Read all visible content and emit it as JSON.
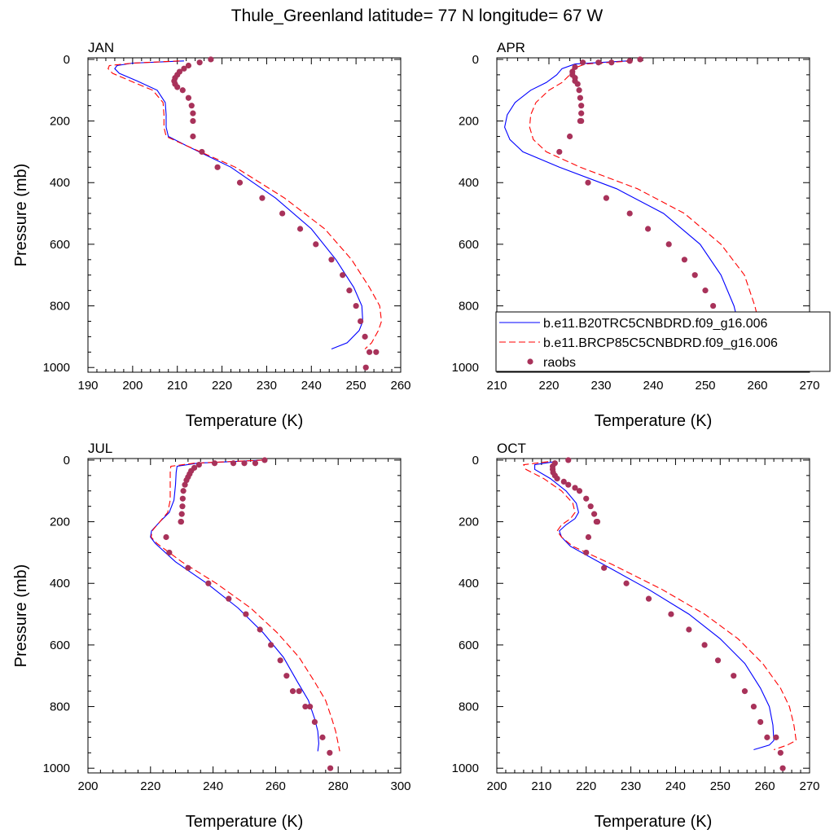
{
  "figure": {
    "title": "Thule_Greenland  latitude= 77 N longitude= 67 W"
  },
  "legend": {
    "placement": "right-middle",
    "entries": [
      {
        "label": "b.e11.B20TRC5CNBDRD.f09_g16.006",
        "style": "solid-line",
        "color": "#0000ff"
      },
      {
        "label": "b.e11.BRCP85C5CNBDRD.f09_g16.006",
        "style": "dashed-line",
        "color": "#ff0000"
      },
      {
        "label": "raobs",
        "style": "dots",
        "color": "#a8325a"
      }
    ]
  },
  "chart_data": [
    {
      "type": "line",
      "panel": "JAN",
      "xlabel": "Temperature (K)",
      "ylabel": "Pressure (mb)",
      "xlim": [
        190,
        260
      ],
      "ylim": [
        0,
        1000
      ],
      "y_inverted": true,
      "xticks": [
        "190",
        "200",
        "210",
        "220",
        "230",
        "240",
        "250",
        "260"
      ],
      "yticks": [
        "0",
        "200",
        "400",
        "600",
        "800",
        "1000"
      ],
      "series": [
        {
          "name": "b.e11.B20TRC5CNBDRD.f09_g16.006",
          "color": "#0000ff",
          "dash": false,
          "x": [
            211.5,
            200,
            196.5,
            196,
            197,
            201,
            205.5,
            207.3,
            207.5,
            207.5,
            208,
            212,
            222,
            232,
            240,
            245.5,
            249.5,
            251.3,
            251.5,
            250.7,
            248,
            244.5
          ],
          "y": [
            5,
            12,
            20,
            30,
            45,
            70,
            100,
            140,
            180,
            220,
            250,
            280,
            350,
            450,
            550,
            650,
            740,
            800,
            850,
            880,
            920,
            940
          ]
        },
        {
          "name": "b.e11.BRCP85C5CNBDRD.f09_g16.006",
          "color": "#ff0000",
          "dash": true,
          "x": [
            210.5,
            200,
            194.8,
            194.5,
            195.5,
            199.5,
            204.5,
            206.8,
            207,
            207,
            207.5,
            212,
            223,
            234,
            243,
            249,
            253,
            255.3,
            255.7,
            255,
            253.5,
            252
          ],
          "y": [
            5,
            12,
            20,
            30,
            45,
            70,
            100,
            140,
            180,
            220,
            250,
            280,
            350,
            450,
            550,
            650,
            740,
            800,
            850,
            880,
            920,
            940
          ]
        },
        {
          "name": "raobs",
          "color": "#a8325a",
          "dots": true,
          "x": [
            217.5,
            215,
            212.5,
            211.5,
            210.5,
            210,
            209.5,
            209.3,
            209.5,
            210,
            211.2,
            212.5,
            213.2,
            213.5,
            213.5,
            213.5,
            215.5,
            219,
            224,
            229,
            233.5,
            237.5,
            241,
            244.5,
            247,
            248.5,
            250,
            251,
            252,
            253,
            254.5,
            252.2
          ],
          "y": [
            0,
            10,
            20,
            30,
            40,
            50,
            60,
            70,
            80,
            90,
            100,
            125,
            150,
            175,
            200,
            250,
            300,
            350,
            400,
            450,
            500,
            550,
            600,
            650,
            700,
            750,
            800,
            850,
            900,
            950,
            950,
            1000
          ]
        }
      ]
    },
    {
      "type": "line",
      "panel": "APR",
      "xlabel": "Temperature (K)",
      "ylabel": "",
      "xlim": [
        210,
        270
      ],
      "ylim": [
        0,
        1000
      ],
      "y_inverted": true,
      "xticks": [
        "210",
        "220",
        "230",
        "240",
        "250",
        "260",
        "270"
      ],
      "yticks": [
        "0",
        "200",
        "400",
        "600",
        "800",
        "1000"
      ],
      "series": [
        {
          "name": "b.e11.B20TRC5CNBDRD.f09_g16.006",
          "color": "#0000ff",
          "dash": false,
          "x": [
            235,
            225,
            222.5,
            221.5,
            219.5,
            216.5,
            213.5,
            212,
            211.5,
            212.5,
            215,
            222,
            233,
            242,
            249,
            253,
            255.5,
            256.5,
            257,
            256.8,
            254
          ],
          "y": [
            5,
            15,
            30,
            50,
            75,
            100,
            140,
            180,
            220,
            260,
            300,
            350,
            420,
            500,
            600,
            700,
            800,
            870,
            900,
            930,
            945
          ]
        },
        {
          "name": "b.e11.BRCP85C5CNBDRD.f09_g16.006",
          "color": "#ff0000",
          "dash": true,
          "x": [
            236,
            227,
            224.5,
            224,
            222.5,
            220,
            217.5,
            216.5,
            216.3,
            217,
            219.5,
            226,
            237,
            246,
            253,
            257.5,
            259.5,
            260.5,
            260.7,
            260,
            257
          ],
          "y": [
            5,
            15,
            30,
            50,
            75,
            100,
            140,
            180,
            220,
            260,
            300,
            350,
            420,
            500,
            600,
            700,
            800,
            870,
            900,
            930,
            945
          ]
        },
        {
          "name": "raobs",
          "color": "#a8325a",
          "dots": true,
          "x": [
            237.5,
            235.5,
            232,
            229.5,
            226.5,
            225,
            224.5,
            224.5,
            225,
            225,
            225.5,
            225.8,
            226,
            226.2,
            226.2,
            226.2,
            226,
            224,
            222,
            227.5,
            231,
            235.5,
            239,
            243,
            246,
            248,
            250,
            251.5,
            253,
            254.5,
            256,
            257
          ],
          "y": [
            0,
            5,
            10,
            10,
            10,
            25,
            40,
            50,
            60,
            70,
            80,
            100,
            125,
            150,
            175,
            200,
            200,
            250,
            300,
            400,
            450,
            500,
            550,
            600,
            650,
            700,
            750,
            800,
            850,
            900,
            950,
            1000
          ]
        }
      ]
    },
    {
      "type": "line",
      "panel": "JUL",
      "xlabel": "Temperature (K)",
      "ylabel": "Pressure (mb)",
      "xlim": [
        200,
        300
      ],
      "ylim": [
        0,
        1000
      ],
      "y_inverted": true,
      "xticks": [
        "200",
        "220",
        "240",
        "260",
        "280",
        "300"
      ],
      "yticks": [
        "0",
        "200",
        "400",
        "600",
        "800",
        "1000"
      ],
      "series": [
        {
          "name": "b.e11.B20TRC5CNBDRD.f09_g16.006",
          "color": "#0000ff",
          "dash": false,
          "x": [
            256,
            235,
            228.5,
            228.2,
            228,
            227.5,
            226,
            223,
            220.3,
            220,
            221.5,
            228,
            238,
            248,
            256,
            262.5,
            267,
            270.5,
            272.5,
            273.5,
            273.8,
            273.5
          ],
          "y": [
            0,
            10,
            20,
            40,
            80,
            130,
            170,
            200,
            230,
            250,
            270,
            330,
            400,
            480,
            560,
            640,
            720,
            780,
            840,
            880,
            920,
            945
          ]
        },
        {
          "name": "b.e11.BRCP85C5CNBDRD.f09_g16.006",
          "color": "#ff0000",
          "dash": true,
          "x": [
            256,
            234,
            226.5,
            226.3,
            226.3,
            226.3,
            225.5,
            223,
            220.5,
            220.2,
            222,
            230,
            241,
            252,
            260.5,
            267.5,
            272.5,
            276,
            278,
            279.2,
            280,
            280.5
          ],
          "y": [
            0,
            10,
            20,
            40,
            80,
            130,
            170,
            200,
            230,
            250,
            270,
            330,
            400,
            480,
            560,
            640,
            720,
            780,
            840,
            880,
            920,
            945
          ]
        },
        {
          "name": "raobs",
          "color": "#a8325a",
          "dots": true,
          "x": [
            256.5,
            253.5,
            250,
            246.5,
            240.5,
            235.5,
            234,
            233,
            232.5,
            232,
            231.5,
            231,
            230.5,
            230.3,
            230.2,
            230,
            229.8,
            229.7,
            225,
            226,
            232,
            238.5,
            245,
            250.5,
            255,
            258.5,
            261.5,
            263.5,
            265.5,
            267.5,
            269.5,
            271,
            272.5,
            275,
            277.3,
            277.5
          ],
          "y": [
            0,
            10,
            10,
            10,
            10,
            15,
            25,
            35,
            45,
            55,
            65,
            80,
            100,
            125,
            150,
            175,
            200,
            200,
            250,
            300,
            350,
            400,
            450,
            500,
            550,
            600,
            650,
            700,
            750,
            750,
            800,
            800,
            850,
            900,
            950,
            1000
          ]
        }
      ]
    },
    {
      "type": "line",
      "panel": "OCT",
      "xlabel": "Temperature (K)",
      "ylabel": "",
      "xlim": [
        200,
        270
      ],
      "ylim": [
        0,
        1000
      ],
      "y_inverted": true,
      "xticks": [
        "200",
        "210",
        "220",
        "230",
        "240",
        "250",
        "260",
        "270"
      ],
      "yticks": [
        "0",
        "200",
        "400",
        "600",
        "800",
        "1000"
      ],
      "series": [
        {
          "name": "b.e11.B20TRC5CNBDRD.f09_g16.006",
          "color": "#0000ff",
          "dash": false,
          "x": [
            213,
            208.5,
            208.5,
            212,
            215.5,
            217.8,
            218.3,
            217.5,
            215.5,
            214,
            214.5,
            216.5,
            224,
            234,
            243,
            250,
            255.5,
            259,
            261,
            261.8,
            262,
            261,
            257.5
          ],
          "y": [
            5,
            15,
            30,
            60,
            100,
            140,
            170,
            190,
            210,
            230,
            250,
            280,
            340,
            420,
            500,
            580,
            660,
            740,
            800,
            860,
            910,
            925,
            940
          ]
        },
        {
          "name": "b.e11.BRCP85C5CNBDRD.f09_g16.006",
          "color": "#ff0000",
          "dash": true,
          "x": [
            211.5,
            206,
            206.5,
            210.5,
            214.5,
            217,
            217.5,
            216.5,
            214.5,
            213.5,
            214.5,
            217,
            226,
            237,
            246.5,
            254,
            259.5,
            263.5,
            265.5,
            266.5,
            267,
            265,
            262
          ],
          "y": [
            5,
            15,
            30,
            60,
            100,
            140,
            170,
            190,
            210,
            230,
            250,
            280,
            340,
            420,
            500,
            580,
            660,
            740,
            800,
            860,
            910,
            925,
            940
          ]
        },
        {
          "name": "raobs",
          "color": "#a8325a",
          "dots": true,
          "x": [
            216,
            213,
            212.5,
            212.5,
            212.6,
            213,
            213.5,
            215,
            216,
            217.5,
            218.5,
            220,
            221,
            221.8,
            222.3,
            222.5,
            222.5,
            220.5,
            220,
            224,
            229,
            234,
            239,
            243,
            246.5,
            249.5,
            253,
            255.5,
            257.5,
            259,
            260.5,
            262.5,
            263.5,
            264
          ],
          "y": [
            0,
            10,
            20,
            30,
            40,
            50,
            60,
            70,
            80,
            90,
            100,
            125,
            150,
            175,
            200,
            200,
            200,
            250,
            300,
            350,
            400,
            450,
            500,
            550,
            600,
            650,
            700,
            750,
            800,
            850,
            900,
            900,
            950,
            1000
          ]
        }
      ]
    }
  ]
}
